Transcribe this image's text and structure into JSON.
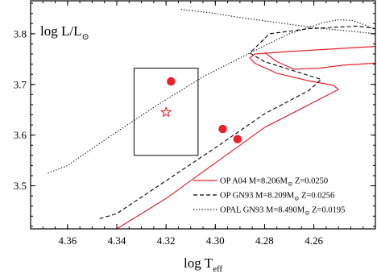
{
  "chart_data": {
    "type": "line",
    "title": "",
    "xlabel": {
      "main": "log T",
      "sub": "eff"
    },
    "ylabel": {
      "main": "log L/L",
      "sub": "⊙"
    },
    "xlim": [
      4.375,
      4.235
    ],
    "ylim": [
      3.415,
      3.865
    ],
    "x_reversed": true,
    "grid": false,
    "x_ticks": [
      4.36,
      4.34,
      4.32,
      4.3,
      4.28,
      4.26
    ],
    "x_tick_labels": [
      "4.36",
      "4.34",
      "4.32",
      "4.30",
      "4.28",
      "4.26"
    ],
    "y_ticks": [
      3.5,
      3.6,
      3.7,
      3.8
    ],
    "y_tick_labels": [
      "3.5",
      "3.6",
      "3.7",
      "3.8"
    ],
    "legend": {
      "position": "bottom-right",
      "entries": [
        {
          "style": "solid",
          "color": "#e8202a",
          "label": "OP A04 M=8.206M",
          "sun": "⊙",
          "suffix": " Z=0.0250"
        },
        {
          "style": "dashed",
          "color": "#000000",
          "label": "OP GN93 M=8.209M",
          "sun": "⊙",
          "suffix": " Z=0.0256"
        },
        {
          "style": "dotted",
          "color": "#000000",
          "label": "OPAL GN93 M=8.490M",
          "sun": "⊙",
          "suffix": " Z=0.0195"
        }
      ]
    },
    "series": [
      {
        "style": "solid",
        "color": "#e8202a",
        "points": [
          [
            4.34,
            3.415
          ],
          [
            4.32,
            3.475
          ],
          [
            4.3,
            3.545
          ],
          [
            4.28,
            3.615
          ],
          [
            4.262,
            3.66
          ],
          [
            4.25,
            3.69
          ],
          [
            4.252,
            3.698
          ],
          [
            4.262,
            3.707
          ],
          [
            4.275,
            3.722
          ],
          [
            4.28,
            3.733
          ],
          [
            4.284,
            3.742
          ],
          [
            4.286,
            3.752
          ],
          [
            4.284,
            3.76
          ],
          [
            4.27,
            3.765
          ],
          [
            4.235,
            3.775
          ]
        ]
      },
      {
        "style": "solid",
        "color": "#e8202a",
        "points": [
          [
            4.28,
            3.763
          ],
          [
            4.275,
            3.745
          ],
          [
            4.268,
            3.73
          ],
          [
            4.258,
            3.732
          ],
          [
            4.248,
            3.738
          ],
          [
            4.235,
            3.742
          ]
        ]
      },
      {
        "style": "dashed",
        "color": "#000000",
        "points": [
          [
            4.347,
            3.435
          ],
          [
            4.34,
            3.445
          ],
          [
            4.32,
            3.51
          ],
          [
            4.3,
            3.575
          ],
          [
            4.28,
            3.642
          ],
          [
            4.262,
            3.688
          ],
          [
            4.257,
            3.71
          ],
          [
            4.265,
            3.722
          ],
          [
            4.28,
            3.745
          ],
          [
            4.286,
            3.762
          ],
          [
            4.278,
            3.8
          ],
          [
            4.262,
            3.81
          ],
          [
            4.242,
            3.815
          ],
          [
            4.235,
            3.81
          ]
        ]
      },
      {
        "style": "dotted",
        "color": "#000000",
        "points": [
          [
            4.368,
            3.525
          ],
          [
            4.36,
            3.54
          ],
          [
            4.345,
            3.59
          ],
          [
            4.325,
            3.655
          ],
          [
            4.305,
            3.715
          ],
          [
            4.286,
            3.762
          ],
          [
            4.27,
            3.8
          ],
          [
            4.256,
            3.822
          ],
          [
            4.25,
            3.828
          ],
          [
            4.244,
            3.826
          ],
          [
            4.238,
            3.815
          ],
          [
            4.235,
            3.808
          ]
        ]
      },
      {
        "style": "dotted",
        "color": "#000000",
        "points": [
          [
            4.314,
            3.848
          ],
          [
            4.3,
            3.84
          ],
          [
            4.29,
            3.832
          ],
          [
            4.275,
            3.822
          ],
          [
            4.26,
            3.812
          ],
          [
            4.245,
            3.805
          ],
          [
            4.235,
            3.8
          ]
        ]
      }
    ],
    "markers": [
      {
        "shape": "dot",
        "x": 4.318,
        "y": 3.706,
        "color": "#e8202a"
      },
      {
        "shape": "dot",
        "x": 4.297,
        "y": 3.612,
        "color": "#e8202a"
      },
      {
        "shape": "dot",
        "x": 4.291,
        "y": 3.592,
        "color": "#e8202a"
      },
      {
        "shape": "star",
        "x": 4.32,
        "y": 3.645,
        "color": "#e8202a"
      }
    ],
    "error_box": {
      "x": [
        4.333,
        4.307
      ],
      "y": [
        3.56,
        3.732
      ]
    }
  }
}
